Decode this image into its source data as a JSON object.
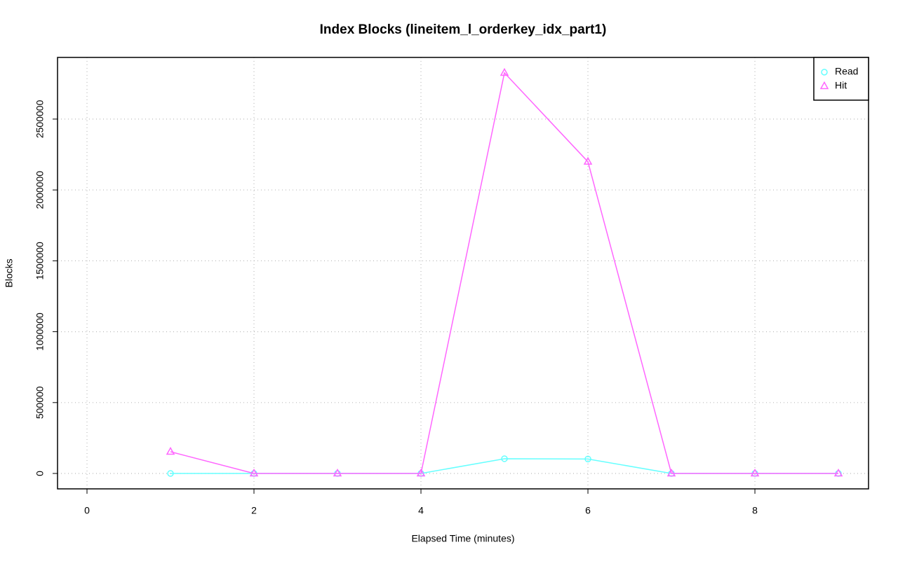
{
  "chart_data": {
    "type": "line",
    "title": "Index Blocks (lineitem_l_orderkey_idx_part1)",
    "x_label": "Elapsed Time (minutes)",
    "y_label": "Blocks",
    "x": [
      1,
      2,
      3,
      4,
      5,
      6,
      7,
      8,
      9
    ],
    "series": [
      {
        "name": "Read",
        "color": "#66ffff",
        "marker": "circle",
        "values": [
          0,
          0,
          0,
          0,
          104000,
          102000,
          0,
          0,
          0
        ]
      },
      {
        "name": "Hit",
        "color": "#ff66ff",
        "marker": "triangle",
        "values": [
          153000,
          0,
          0,
          0,
          2826000,
          2199000,
          0,
          0,
          0
        ]
      }
    ],
    "xlim": [
      -0.353,
      9.361
    ],
    "ylim": [
      -108700,
      2934800
    ],
    "xticks": [
      0,
      2,
      4,
      6,
      8
    ],
    "yticks": [
      0,
      500000,
      1000000,
      1500000,
      2000000,
      2500000
    ],
    "grid": true,
    "legend": "top-right"
  }
}
